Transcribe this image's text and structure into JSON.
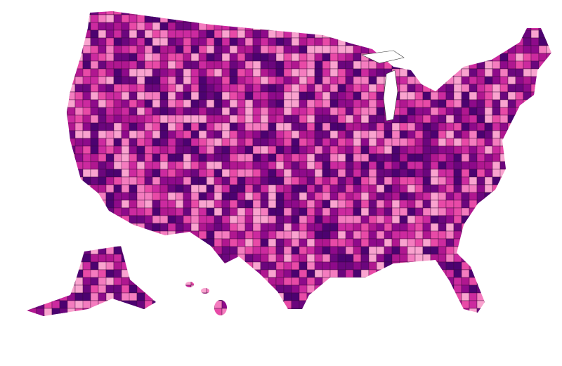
{
  "map": {
    "palette": [
      "#f9a3cf",
      "#f47cbf",
      "#e84aa7",
      "#cc2a9f",
      "#b01790",
      "#8e0a8a",
      "#6b067d",
      "#4c0270"
    ]
  }
}
